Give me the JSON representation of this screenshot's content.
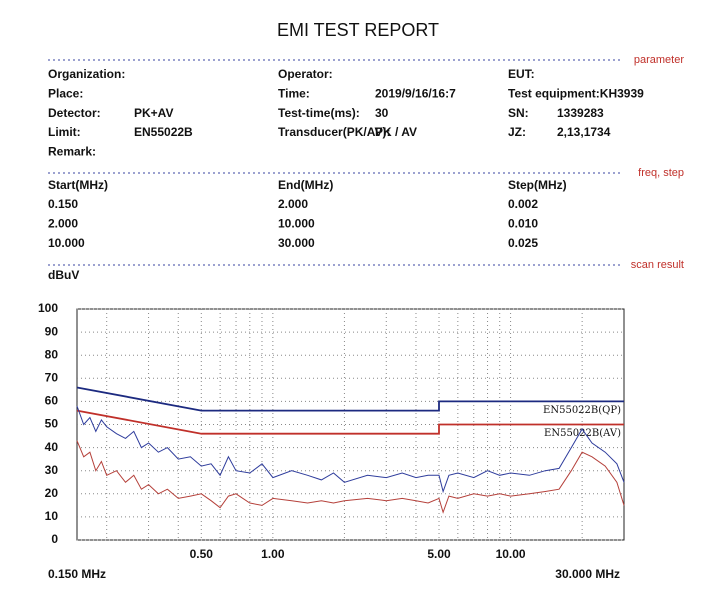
{
  "title": "EMI TEST REPORT",
  "sections": [
    "parameter",
    "freq, step",
    "scan result"
  ],
  "parameters": [
    [
      {
        "label": "Organization:"
      },
      {
        "label": "Place:"
      },
      {
        "label": "Detector:",
        "value": "PK+AV"
      },
      {
        "label": "Limit:",
        "value": "EN55022B"
      },
      {
        "label": "Remark:"
      }
    ],
    [
      {
        "label": "Operator:"
      },
      {
        "label": "Time:",
        "value": "2019/9/16/16:7"
      },
      {
        "label": "Test-time(ms):",
        "value": "30"
      },
      {
        "label": "Transducer(PK/AV):",
        "value": "PK  /  AV"
      }
    ],
    [
      {
        "label": "EUT:"
      },
      {
        "label": "Test equipment:KH3939"
      },
      {
        "label": "SN:",
        "value": "1339283"
      },
      {
        "label": "JZ:",
        "value": "2,13,1734"
      }
    ]
  ],
  "freq_table": {
    "header": [
      "Start(MHz)",
      "End(MHz)",
      "Step(MHz)"
    ],
    "rows": [
      [
        "0.150",
        "2.000",
        "0.002"
      ],
      [
        "2.000",
        "10.000",
        "0.010"
      ],
      [
        "10.000",
        "30.000",
        "0.025"
      ]
    ]
  },
  "chart_data": {
    "type": "line",
    "y_label": "dBuV",
    "x_start_label": "0.150 MHz",
    "x_end_label": "30.000 MHz",
    "x_log": true,
    "xlim": [
      0.15,
      30
    ],
    "ylim": [
      0,
      100
    ],
    "yticks": [
      0,
      10,
      20,
      30,
      40,
      50,
      60,
      70,
      80,
      90,
      100
    ],
    "xticks": [
      {
        "value": 0.5,
        "label": "0.50"
      },
      {
        "value": 1,
        "label": "1.00"
      },
      {
        "value": 5,
        "label": "5.00"
      },
      {
        "value": 10,
        "label": "10.00"
      }
    ],
    "xgrid": [
      0.2,
      0.3,
      0.4,
      0.5,
      0.6,
      0.7,
      0.8,
      0.9,
      1,
      2,
      3,
      4,
      5,
      6,
      7,
      8,
      9,
      10,
      20
    ],
    "grid": true,
    "series": [
      {
        "name": "EN55022B(QP)",
        "color": "#1c2a80",
        "x": [
          0.15,
          0.5,
          5,
          5,
          30
        ],
        "values": [
          66,
          56,
          56,
          60,
          60
        ]
      },
      {
        "name": "EN55022B(AV)",
        "color": "#c0302a",
        "x": [
          0.15,
          0.5,
          5,
          5,
          30
        ],
        "values": [
          56,
          46,
          46,
          50,
          50
        ]
      },
      {
        "color": "#2e3c9c",
        "x": [
          0.15,
          0.16,
          0.17,
          0.18,
          0.19,
          0.2,
          0.22,
          0.24,
          0.26,
          0.28,
          0.3,
          0.33,
          0.36,
          0.4,
          0.45,
          0.5,
          0.55,
          0.6,
          0.65,
          0.7,
          0.8,
          0.9,
          1.0,
          1.2,
          1.4,
          1.6,
          1.8,
          2.0,
          2.5,
          3.0,
          3.5,
          4.0,
          4.5,
          5.0,
          5.2,
          5.5,
          6,
          7,
          8,
          9,
          10,
          12,
          14,
          16,
          18,
          20,
          22,
          25,
          28,
          30
        ],
        "values": [
          58,
          50,
          53,
          47,
          52,
          49,
          46,
          44,
          47,
          40,
          42,
          38,
          40,
          35,
          36,
          32,
          33,
          28,
          36,
          30,
          29,
          33,
          27,
          30,
          28,
          26,
          29,
          25,
          28,
          27,
          29,
          27,
          28,
          28,
          21,
          28,
          29,
          27,
          30,
          28,
          29,
          28,
          30,
          31,
          40,
          48,
          42,
          38,
          33,
          25
        ]
      },
      {
        "color": "#b5403a",
        "x": [
          0.15,
          0.16,
          0.17,
          0.18,
          0.19,
          0.2,
          0.22,
          0.24,
          0.26,
          0.28,
          0.3,
          0.33,
          0.36,
          0.4,
          0.45,
          0.5,
          0.55,
          0.6,
          0.65,
          0.7,
          0.8,
          0.9,
          1.0,
          1.2,
          1.4,
          1.6,
          1.8,
          2.0,
          2.5,
          3.0,
          3.5,
          4.0,
          4.5,
          5.0,
          5.2,
          5.5,
          6,
          7,
          8,
          9,
          10,
          12,
          14,
          16,
          18,
          20,
          22,
          25,
          28,
          30
        ],
        "values": [
          43,
          36,
          38,
          30,
          34,
          28,
          30,
          25,
          28,
          22,
          24,
          20,
          22,
          18,
          19,
          20,
          17,
          14,
          19,
          20,
          16,
          15,
          18,
          17,
          16,
          17,
          16,
          17,
          18,
          17,
          18,
          17,
          16,
          18,
          12,
          19,
          18,
          20,
          19,
          20,
          19,
          20,
          21,
          22,
          30,
          38,
          36,
          32,
          25,
          15
        ]
      }
    ]
  }
}
